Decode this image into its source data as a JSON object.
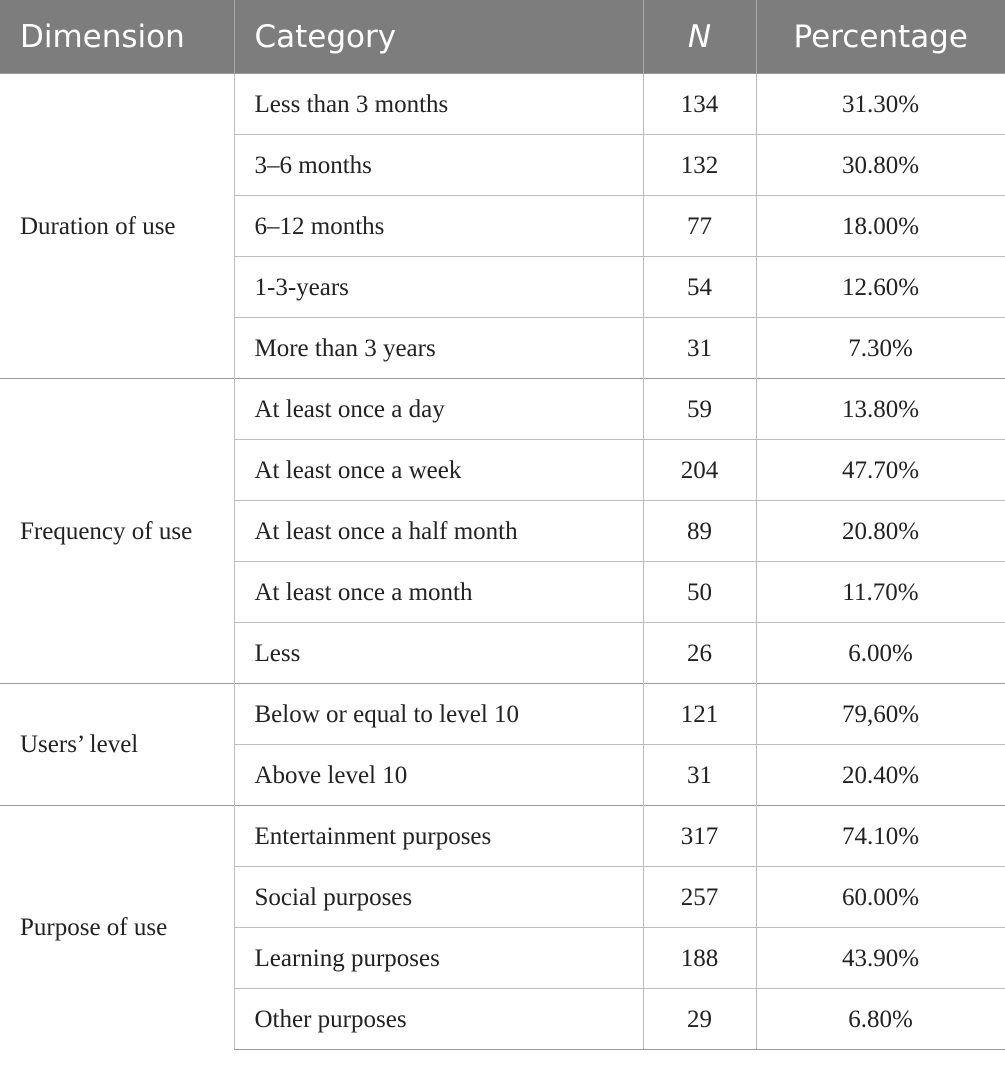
{
  "table": {
    "headers": {
      "dimension": "Dimension",
      "category": "Category",
      "n": "N",
      "percentage": "Percentage"
    },
    "groups": [
      {
        "dimension": "Duration of use",
        "rows": [
          {
            "category": "Less than 3 months",
            "n": "134",
            "percentage": "31.30%"
          },
          {
            "category": "3–6 months",
            "n": "132",
            "percentage": "30.80%"
          },
          {
            "category": "6–12 months",
            "n": "77",
            "percentage": "18.00%"
          },
          {
            "category": "1-3-years",
            "n": "54",
            "percentage": "12.60%"
          },
          {
            "category": "More than 3 years",
            "n": "31",
            "percentage": "7.30%"
          }
        ]
      },
      {
        "dimension": "Frequency of use",
        "rows": [
          {
            "category": "At least once a day",
            "n": "59",
            "percentage": "13.80%"
          },
          {
            "category": "At least once a week",
            "n": "204",
            "percentage": "47.70%"
          },
          {
            "category": "At least once a half month",
            "n": "89",
            "percentage": "20.80%"
          },
          {
            "category": "At least once a month",
            "n": "50",
            "percentage": "11.70%"
          },
          {
            "category": "Less",
            "n": "26",
            "percentage": "6.00%"
          }
        ]
      },
      {
        "dimension": "Users’ level",
        "rows": [
          {
            "category": "Below or equal to level 10",
            "n": "121",
            "percentage": "79,60%"
          },
          {
            "category": "Above level 10",
            "n": "31",
            "percentage": "20.40%"
          }
        ]
      },
      {
        "dimension": "Purpose of use",
        "rows": [
          {
            "category": "Entertainment purposes",
            "n": "317",
            "percentage": "74.10%"
          },
          {
            "category": "Social purposes",
            "n": "257",
            "percentage": "60.00%"
          },
          {
            "category": "Learning purposes",
            "n": "188",
            "percentage": "43.90%"
          },
          {
            "category": "Other purposes",
            "n": "29",
            "percentage": "6.80%"
          }
        ]
      }
    ]
  }
}
